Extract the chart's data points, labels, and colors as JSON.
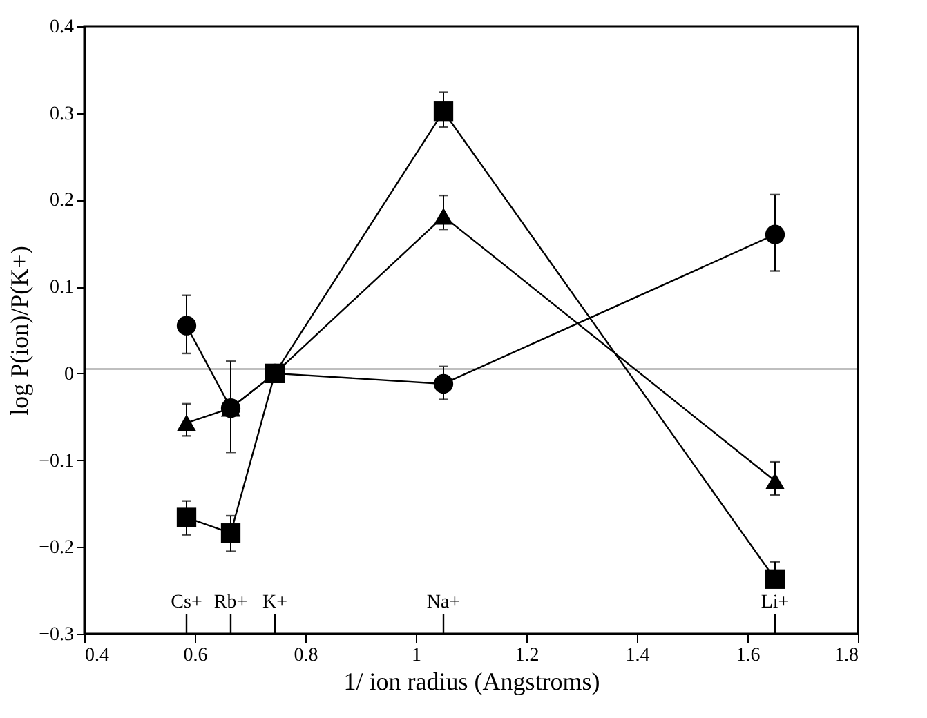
{
  "chart_data": {
    "type": "line",
    "xlabel": "1/ ion radius (Angstroms)",
    "ylabel": "log P(ion)/P(K+)",
    "x": [
      0.585,
      0.665,
      0.745,
      1.05,
      1.65
    ],
    "series": [
      {
        "color": "#000000",
        "marker": "circle",
        "values": [
          0.055,
          -0.04,
          0,
          -0.012,
          0.16
        ],
        "errors": [
          [
            0.023,
            0.09
          ],
          [
            -0.091,
            0.014
          ],
          null,
          [
            -0.03,
            0.008
          ],
          [
            0.118,
            0.206
          ]
        ]
      },
      {
        "color": "#000000",
        "marker": "triangle",
        "values": [
          -0.057,
          -0.04,
          0,
          0.181,
          -0.124
        ],
        "errors": [
          [
            -0.072,
            -0.035
          ],
          null,
          null,
          [
            0.166,
            0.205
          ],
          [
            -0.14,
            -0.102
          ]
        ]
      },
      {
        "color": "#000000",
        "marker": "square",
        "values": [
          -0.166,
          -0.184,
          0,
          0.302,
          -0.237
        ],
        "errors": [
          [
            -0.186,
            -0.147
          ],
          [
            -0.205,
            -0.164
          ],
          null,
          [
            0.284,
            0.324
          ],
          [
            -0.237,
            -0.217
          ]
        ]
      }
    ],
    "xlim": [
      0.4,
      1.8
    ],
    "xticks": [
      0.4,
      0.6,
      0.8,
      1,
      1.2,
      1.4,
      1.6,
      1.8
    ],
    "ylim": [
      -0.3,
      0.4
    ],
    "yticks": [
      -0.3,
      -0.2,
      -0.1,
      0,
      0.1,
      0.2,
      0.3,
      0.4
    ],
    "ref_lines": [
      {
        "axis": "y",
        "value": 0.005,
        "color": "#000000"
      }
    ],
    "annotations": [
      "Cs+",
      "Rb+",
      "K+",
      "Na+",
      "Li+"
    ],
    "grid": false,
    "line_style": "solid"
  }
}
